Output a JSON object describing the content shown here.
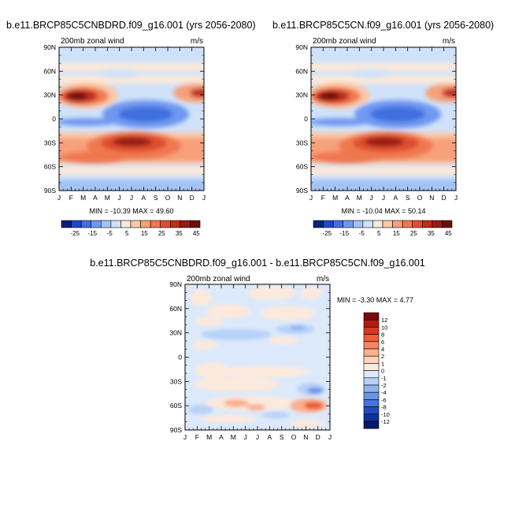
{
  "chart_data": [
    {
      "type": "heatmap",
      "title": "b.e11.BRCP85C5CNBDRD.f09_g16.001 (yrs 2056-2080)",
      "left_label": "200mb zonal wind",
      "right_label": "m/s",
      "x_ticks": [
        "J",
        "F",
        "M",
        "A",
        "M",
        "J",
        "J",
        "A",
        "S",
        "O",
        "N",
        "D",
        "J"
      ],
      "y_ticks": [
        "90N",
        "60N",
        "30N",
        "0",
        "30S",
        "60S",
        "90S"
      ],
      "stats_text": "MIN = -10.39  MAX =  49.60",
      "colorbar": {
        "orientation": "horizontal",
        "labels": [
          "-25",
          "-15",
          "-5",
          "5",
          "15",
          "25",
          "35",
          "45"
        ],
        "colors": [
          "#0a1f7a",
          "#1f47c8",
          "#3f6fe0",
          "#6f98f0",
          "#a3c3f5",
          "#cfe2f9",
          "#fde9d8",
          "#fbc8a6",
          "#f7a07a",
          "#f07850",
          "#de4e2e",
          "#bf2c1a",
          "#981a12",
          "#6e0d0b"
        ]
      }
    },
    {
      "type": "heatmap",
      "title": "b.e11.BRCP85C5CN.f09_g16.001 (yrs 2056-2080)",
      "left_label": "200mb zonal wind",
      "right_label": "m/s",
      "x_ticks": [
        "J",
        "F",
        "M",
        "A",
        "M",
        "J",
        "J",
        "A",
        "S",
        "O",
        "N",
        "D",
        "J"
      ],
      "y_ticks": [
        "90N",
        "60N",
        "30N",
        "0",
        "30S",
        "60S",
        "90S"
      ],
      "stats_text": "MIN = -10.04  MAX =  50.14",
      "colorbar": {
        "orientation": "horizontal",
        "labels": [
          "-25",
          "-15",
          "-5",
          "5",
          "15",
          "25",
          "35",
          "45"
        ],
        "colors": [
          "#0a1f7a",
          "#1f47c8",
          "#3f6fe0",
          "#6f98f0",
          "#a3c3f5",
          "#cfe2f9",
          "#fde9d8",
          "#fbc8a6",
          "#f7a07a",
          "#f07850",
          "#de4e2e",
          "#bf2c1a",
          "#981a12",
          "#6e0d0b"
        ]
      }
    },
    {
      "type": "heatmap",
      "title": "b.e11.BRCP85C5CNBDRD.f09_g16.001 - b.e11.BRCP85C5CN.f09_g16.001",
      "left_label": "200mb zonal wind",
      "right_label": "m/s",
      "x_ticks": [
        "J",
        "F",
        "M",
        "A",
        "M",
        "J",
        "J",
        "A",
        "S",
        "O",
        "N",
        "D",
        "J"
      ],
      "y_ticks": [
        "90N",
        "60N",
        "30N",
        "0",
        "30S",
        "60S",
        "90S"
      ],
      "stats_text": "MIN =  -3.30  MAX =   4.77",
      "colorbar": {
        "orientation": "vertical",
        "labels": [
          "12",
          "10",
          "8",
          "6",
          "4",
          "2",
          "1",
          "0",
          "-1",
          "-2",
          "-4",
          "-6",
          "-8",
          "-10",
          "-12"
        ],
        "colors": [
          "#7a0a0a",
          "#b01c14",
          "#d63a22",
          "#ee5c3a",
          "#f7855f",
          "#fbb08f",
          "#fdd3bb",
          "#fde9dc",
          "#dce9fb",
          "#b7d1f7",
          "#8fb3f0",
          "#6b94e6",
          "#4672dc",
          "#2249c0",
          "#0f2f9a",
          "#06196b"
        ]
      }
    }
  ]
}
